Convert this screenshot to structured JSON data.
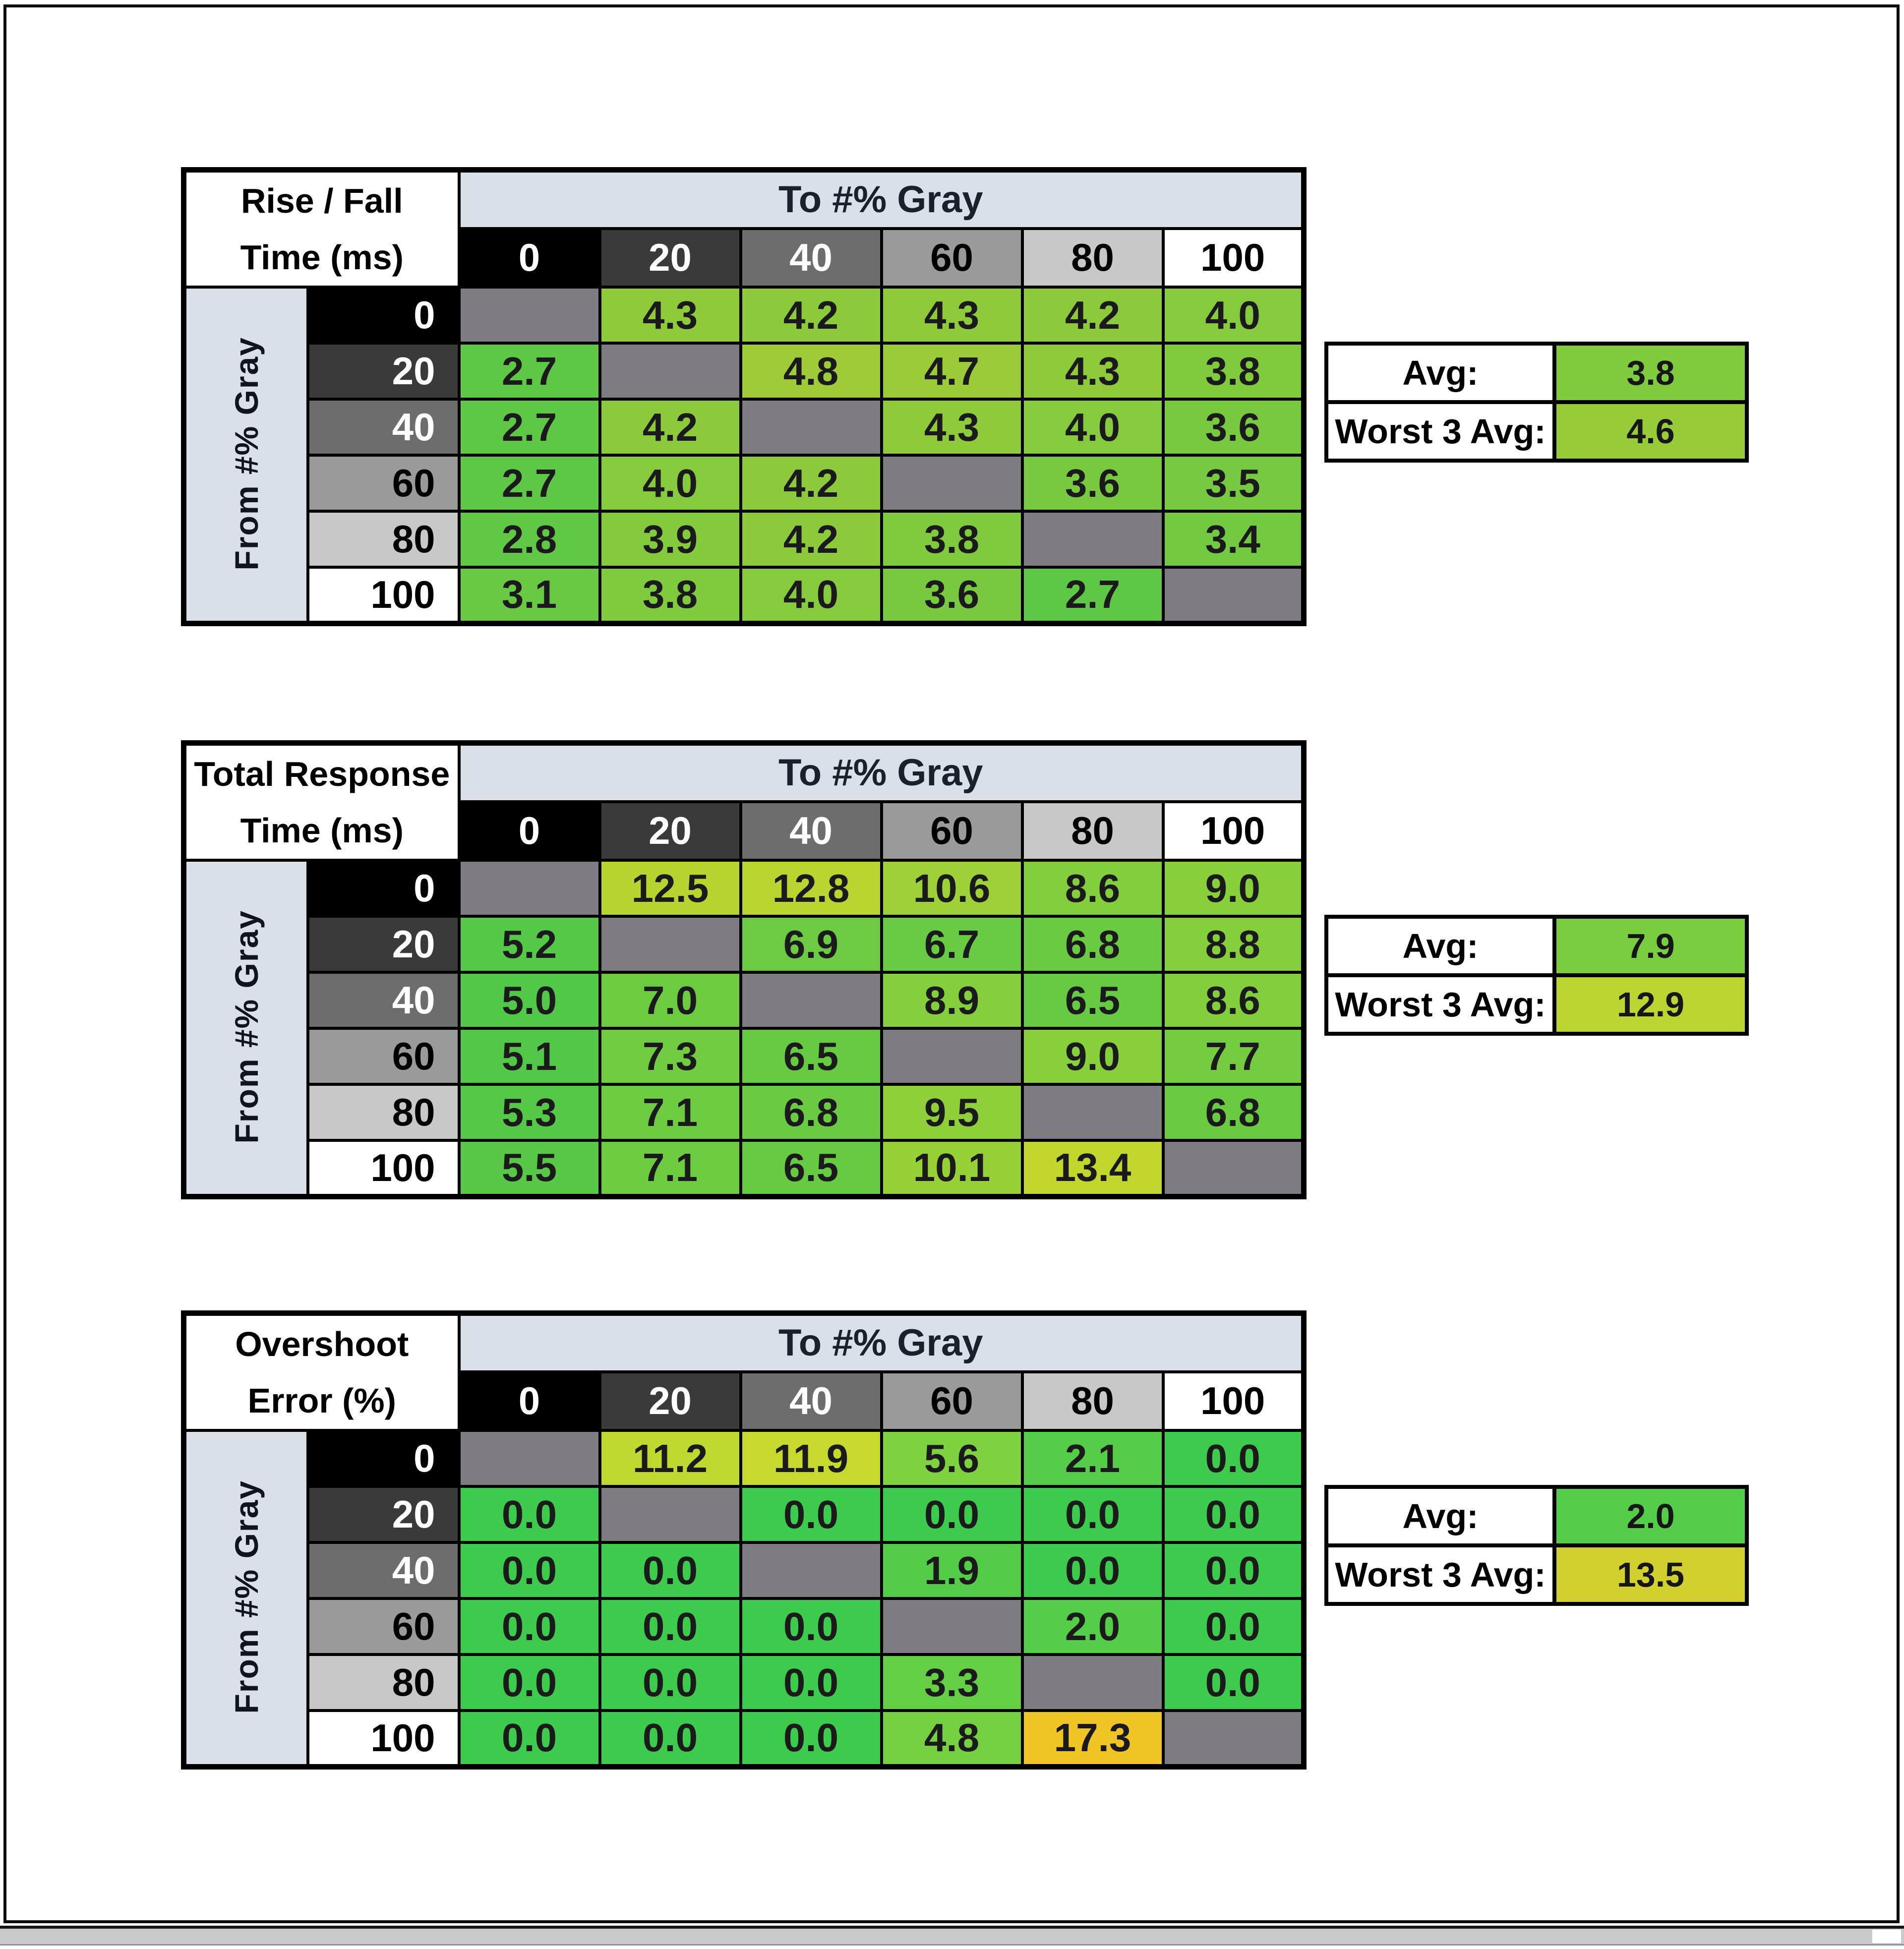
{
  "window": {
    "background": "#ffffff",
    "frame_color": "#0a0a0a"
  },
  "shared": {
    "to_axis_label": "To #% Gray",
    "from_axis_label": "From #% Gray",
    "gray_levels": [
      "0",
      "20",
      "40",
      "60",
      "80",
      "100"
    ],
    "header_cell_backgrounds": [
      "#000000",
      "#3a3a3a",
      "#6d6d6d",
      "#9a9a9a",
      "#c8c8c8",
      "#ffffff"
    ],
    "header_cell_text_colors": [
      "#ffffff",
      "#ffffff",
      "#ffffff",
      "#000000",
      "#000000",
      "#000000"
    ],
    "diagonal_cell_color": "#7e7b82",
    "axis_band_color": "#d9e0e7",
    "avg_label": "Avg:",
    "worst_label": "Worst 3 Avg:"
  },
  "chart_data": [
    {
      "type": "heatmap",
      "key": "rise-fall-time",
      "title_line1": "Rise / Fall",
      "title_line2": "Time (ms)",
      "x_label": "To #% Gray",
      "y_label": "From #% Gray",
      "x": [
        0,
        20,
        40,
        60,
        80,
        100
      ],
      "y": [
        0,
        20,
        40,
        60,
        80,
        100
      ],
      "values": [
        [
          null,
          4.3,
          4.2,
          4.3,
          4.2,
          4.0
        ],
        [
          2.7,
          null,
          4.8,
          4.7,
          4.3,
          3.8
        ],
        [
          2.7,
          4.2,
          null,
          4.3,
          4.0,
          3.6
        ],
        [
          2.7,
          4.0,
          4.2,
          null,
          3.6,
          3.5
        ],
        [
          2.8,
          3.9,
          4.2,
          3.8,
          null,
          3.4
        ],
        [
          3.1,
          3.8,
          4.0,
          3.6,
          2.7,
          null
        ]
      ],
      "cell_colors": [
        [
          null,
          "#8fca3b",
          "#8cca3b",
          "#8fca3b",
          "#8cca3b",
          "#86ca3d"
        ],
        [
          "#5ec846",
          null,
          "#9ecb37",
          "#9bcb38",
          "#8fca3b",
          "#80ca3e"
        ],
        [
          "#5ec846",
          "#8cca3b",
          null,
          "#8fca3b",
          "#86ca3d",
          "#79c940"
        ],
        [
          "#5ec846",
          "#86ca3d",
          "#8cca3b",
          null,
          "#79c940",
          "#76c940"
        ],
        [
          "#61c845",
          "#83ca3d",
          "#8cca3b",
          "#80ca3e",
          null,
          "#73c941"
        ],
        [
          "#6ac943",
          "#80ca3e",
          "#86ca3d",
          "#79c940",
          "#5ec846",
          null
        ]
      ],
      "avg_value": 3.8,
      "avg_color": "#80ca3e",
      "worst3_value": 4.6,
      "worst3_color": "#98cb38"
    },
    {
      "type": "heatmap",
      "key": "total-response-time",
      "title_line1": "Total Response",
      "title_line2": "Time (ms)",
      "x_label": "To #% Gray",
      "y_label": "From #% Gray",
      "x": [
        0,
        20,
        40,
        60,
        80,
        100
      ],
      "y": [
        0,
        20,
        40,
        60,
        80,
        100
      ],
      "values": [
        [
          null,
          12.5,
          12.8,
          10.6,
          8.6,
          9.0
        ],
        [
          5.2,
          null,
          6.9,
          6.7,
          6.8,
          8.8
        ],
        [
          5.0,
          7.0,
          null,
          8.9,
          6.5,
          8.6
        ],
        [
          5.1,
          7.3,
          6.5,
          null,
          9.0,
          7.7
        ],
        [
          5.3,
          7.1,
          6.8,
          9.5,
          null,
          6.8
        ],
        [
          5.5,
          7.1,
          6.5,
          10.1,
          13.4,
          null
        ]
      ],
      "cell_colors": [
        [
          null,
          "#b7d531",
          "#bbd530",
          "#9dd137",
          "#82ce3d",
          "#88cf3c"
        ],
        [
          "#55c848",
          null,
          "#6ccb42",
          "#69cb43",
          "#6acb42",
          "#85ce3c"
        ],
        [
          "#52c848",
          "#6dcb42",
          null,
          "#86cf3c",
          "#66cb43",
          "#82ce3d"
        ],
        [
          "#53c848",
          "#71cc41",
          "#66cb43",
          null,
          "#88cf3c",
          "#76cc40"
        ],
        [
          "#56c848",
          "#6ecc42",
          "#6acb42",
          "#8fd03a",
          null,
          "#6acb42"
        ],
        [
          "#59c847",
          "#6ecc42",
          "#66cb43",
          "#97d138",
          "#c3d62e",
          null
        ]
      ],
      "avg_value": 7.9,
      "avg_color": "#79cd3f",
      "worst3_value": 12.9,
      "worst3_color": "#bcd530"
    },
    {
      "type": "heatmap",
      "key": "overshoot-error",
      "title_line1": "Overshoot",
      "title_line2": "Error (%)",
      "x_label": "To #% Gray",
      "y_label": "From #% Gray",
      "x": [
        0,
        20,
        40,
        60,
        80,
        100
      ],
      "y": [
        0,
        20,
        40,
        60,
        80,
        100
      ],
      "values": [
        [
          null,
          11.2,
          11.9,
          5.6,
          2.1,
          0.0
        ],
        [
          0.0,
          null,
          0.0,
          0.0,
          0.0,
          0.0
        ],
        [
          0.0,
          0.0,
          null,
          1.9,
          0.0,
          0.0
        ],
        [
          0.0,
          0.0,
          0.0,
          null,
          2.0,
          0.0
        ],
        [
          0.0,
          0.0,
          0.0,
          3.3,
          null,
          0.0
        ],
        [
          0.0,
          0.0,
          0.0,
          4.8,
          17.3,
          null
        ]
      ],
      "cell_colors": [
        [
          null,
          "#c0d830",
          "#c8d92e",
          "#7ed23f",
          "#56cd48",
          "#3dcb4d"
        ],
        [
          "#3dcb4d",
          null,
          "#3dcb4d",
          "#3dcb4d",
          "#3dcb4d",
          "#3dcb4d"
        ],
        [
          "#3dcb4d",
          "#3dcb4d",
          null,
          "#53cd48",
          "#3dcb4d",
          "#3dcb4d"
        ],
        [
          "#3dcb4d",
          "#3dcb4d",
          "#3dcb4d",
          null,
          "#54cd48",
          "#3dcb4d"
        ],
        [
          "#3dcb4d",
          "#3dcb4d",
          "#3dcb4d",
          "#64cf44",
          null,
          "#3dcb4d"
        ],
        [
          "#3dcb4d",
          "#3dcb4d",
          "#3dcb4d",
          "#75d141",
          "#efc424",
          null
        ]
      ],
      "avg_value": 2.0,
      "avg_color": "#54cd48",
      "worst3_value": 13.5,
      "worst3_color": "#d2d02e"
    }
  ]
}
